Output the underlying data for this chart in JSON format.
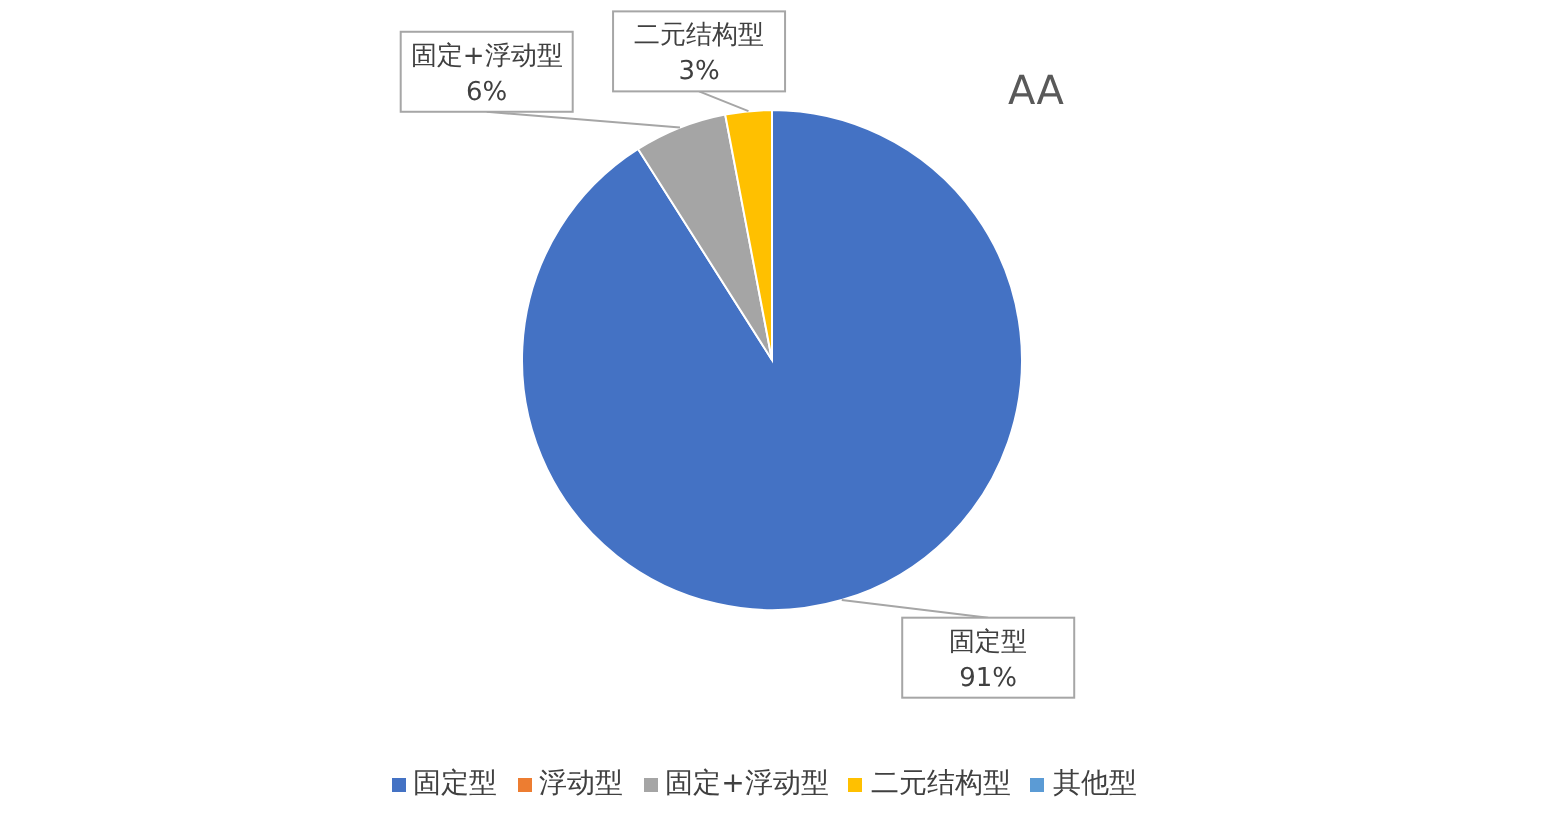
{
  "chart_data": {
    "type": "pie",
    "title": "AA",
    "categories": [
      "固定型",
      "浮动型",
      "固定+浮动型",
      "二元结构型",
      "其他型"
    ],
    "values": [
      91,
      0,
      6,
      3,
      0
    ],
    "colors": [
      "#4472c4",
      "#ed7d31",
      "#a5a5a5",
      "#ffc000",
      "#5b9bd5"
    ],
    "value_labels": [
      "91%",
      null,
      "6%",
      "3%",
      null
    ],
    "legend": "bottom"
  }
}
